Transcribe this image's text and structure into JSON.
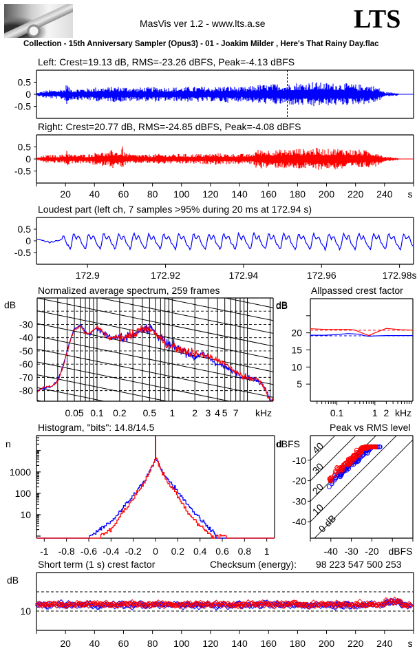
{
  "header": {
    "app_title": "MasVis ver 1.2 - www.lts.a.se",
    "brand": "LTS",
    "logo_icon": "audio-jack-photo",
    "file_caption": "Collection - 15th Anniversary Sampler (Opus3) - 01 - Joakim Milder , Here's That Rainy Day.flac"
  },
  "colors": {
    "left": "#0000ff",
    "right": "#ff0000",
    "axis": "#000000",
    "background": "#ffffff"
  },
  "chart_data": [
    {
      "id": "left-waveform",
      "type": "area",
      "title": "Left: Crest=19.13 dB, RMS=-23.26 dBFS, Peak=-4.13 dBFS",
      "channel": "left",
      "crest_db": 19.13,
      "rms_dbfs": -23.26,
      "peak_dbfs": -4.13,
      "ylim": [
        -1,
        1
      ],
      "yticks": [
        "0.5",
        "0",
        "-0.5"
      ],
      "ytick_values": [
        0.5,
        0,
        -0.5
      ],
      "xlim": [
        0,
        260
      ],
      "marker_time_s": 172.94,
      "envelope": {
        "t": [
          0,
          5,
          10,
          15,
          20,
          21,
          22,
          25,
          30,
          35,
          40,
          45,
          50,
          55,
          60,
          65,
          70,
          75,
          80,
          85,
          90,
          95,
          100,
          105,
          110,
          115,
          120,
          125,
          130,
          135,
          140,
          145,
          150,
          155,
          160,
          165,
          170,
          172,
          175,
          180,
          185,
          190,
          195,
          200,
          205,
          210,
          215,
          220,
          225,
          230,
          235,
          240,
          245,
          249,
          250,
          260
        ],
        "amp": [
          0.05,
          0.15,
          0.18,
          0.2,
          0.25,
          0.62,
          0.3,
          0.22,
          0.25,
          0.25,
          0.3,
          0.3,
          0.3,
          0.33,
          0.32,
          0.3,
          0.28,
          0.3,
          0.3,
          0.32,
          0.3,
          0.3,
          0.3,
          0.32,
          0.32,
          0.33,
          0.3,
          0.33,
          0.35,
          0.35,
          0.3,
          0.3,
          0.38,
          0.42,
          0.4,
          0.45,
          0.45,
          0.42,
          0.45,
          0.5,
          0.48,
          0.55,
          0.5,
          0.48,
          0.47,
          0.48,
          0.45,
          0.42,
          0.42,
          0.4,
          0.32,
          0.1,
          0.08,
          0.06,
          0.01,
          0.01
        ]
      }
    },
    {
      "id": "right-waveform",
      "type": "area",
      "title": "Right: Crest=20.77 dB, RMS=-24.85 dBFS, Peak=-4.08 dBFS",
      "channel": "right",
      "crest_db": 20.77,
      "rms_dbfs": -24.85,
      "peak_dbfs": -4.08,
      "ylim": [
        -1,
        1
      ],
      "yticks": [
        "0.5",
        "0",
        "-0.5"
      ],
      "ytick_values": [
        0.5,
        0,
        -0.5
      ],
      "xlim": [
        0,
        260
      ],
      "xticks": [
        "20",
        "40",
        "60",
        "80",
        "100",
        "120",
        "140",
        "160",
        "180",
        "200",
        "220",
        "240"
      ],
      "xtick_values": [
        20,
        40,
        60,
        80,
        100,
        120,
        140,
        160,
        180,
        200,
        220,
        240
      ],
      "xunit": "s",
      "envelope": {
        "t": [
          0,
          5,
          10,
          15,
          20,
          21,
          22,
          25,
          30,
          35,
          40,
          42,
          45,
          50,
          52,
          55,
          58,
          59,
          60,
          65,
          70,
          75,
          80,
          85,
          90,
          95,
          100,
          105,
          110,
          115,
          120,
          125,
          130,
          135,
          140,
          145,
          150,
          151,
          155,
          160,
          165,
          170,
          175,
          180,
          185,
          190,
          195,
          200,
          205,
          210,
          215,
          220,
          225,
          230,
          235,
          240,
          245,
          249,
          250,
          260
        ],
        "amp": [
          0.05,
          0.15,
          0.18,
          0.18,
          0.2,
          0.5,
          0.25,
          0.18,
          0.2,
          0.2,
          0.25,
          0.38,
          0.3,
          0.25,
          0.4,
          0.35,
          0.3,
          0.62,
          0.3,
          0.2,
          0.2,
          0.18,
          0.2,
          0.22,
          0.2,
          0.2,
          0.22,
          0.2,
          0.22,
          0.22,
          0.22,
          0.25,
          0.22,
          0.22,
          0.22,
          0.2,
          0.25,
          0.38,
          0.4,
          0.4,
          0.38,
          0.4,
          0.42,
          0.45,
          0.42,
          0.48,
          0.45,
          0.42,
          0.45,
          0.45,
          0.42,
          0.4,
          0.38,
          0.35,
          0.3,
          0.1,
          0.08,
          0.06,
          0.01,
          0.01
        ]
      }
    },
    {
      "id": "loudest-part",
      "type": "line",
      "title": "Loudest part (left  ch, 7 samples >95% during 20 ms at 172.94 s)",
      "ylim": [
        -1,
        1
      ],
      "yticks": [
        "0.5",
        "0",
        "-0.5"
      ],
      "ytick_values": [
        0.5,
        0,
        -0.5
      ],
      "xlim": [
        172.8869,
        172.9836
      ],
      "xticks": [
        "172.9",
        "172.92",
        "172.94",
        "172.96",
        "172.98s"
      ],
      "xtick_values": [
        172.9,
        172.92,
        172.94,
        172.96,
        172.98
      ],
      "series": [
        {
          "name": "left",
          "oscillation_hz": 260,
          "amplitude_approx": 0.45,
          "onset_s": 172.893
        }
      ]
    },
    {
      "id": "average-spectrum",
      "type": "line",
      "title": "Normalized average spectrum, 259 frames",
      "ylabel": "dB",
      "xlabel": "kHz",
      "ylim": [
        -88,
        -10
      ],
      "yticks": [
        "-30",
        "-40",
        "-50",
        "-60",
        "-70",
        "-80"
      ],
      "ytick_values": [
        -30,
        -40,
        -50,
        -60,
        -70,
        -80
      ],
      "xscale": "log",
      "xlim_khz": [
        0.016,
        22
      ],
      "xticks": [
        "0.05",
        "0.1",
        "0.2",
        "0.5",
        "1",
        "2",
        "3",
        "4",
        "5",
        "7",
        "kHz"
      ],
      "xtick_values_khz": [
        0.05,
        0.1,
        0.2,
        0.5,
        1,
        2,
        3,
        4,
        5,
        7
      ],
      "series": [
        {
          "name": "left",
          "f_khz": [
            0.016,
            0.02,
            0.025,
            0.03,
            0.035,
            0.04,
            0.045,
            0.05,
            0.055,
            0.06,
            0.07,
            0.08,
            0.09,
            0.1,
            0.12,
            0.15,
            0.2,
            0.3,
            0.4,
            0.5,
            0.6,
            0.7,
            0.8,
            1,
            1.2,
            1.5,
            2,
            2.5,
            3,
            4,
            5,
            6,
            7,
            8,
            10,
            12,
            14,
            16,
            18,
            20,
            22
          ],
          "db": [
            -80,
            -78,
            -77,
            -72,
            -62,
            -50,
            -40,
            -33,
            -32,
            -30,
            -36,
            -38,
            -34,
            -33,
            -36,
            -40,
            -40,
            -38,
            -33,
            -32,
            -36,
            -40,
            -44,
            -47,
            -48,
            -50,
            -55,
            -52,
            -55,
            -60,
            -62,
            -65,
            -66,
            -68,
            -70,
            -71,
            -73,
            -75,
            -80,
            -87,
            -88
          ]
        },
        {
          "name": "right",
          "f_khz": [
            0.016,
            0.02,
            0.025,
            0.03,
            0.035,
            0.04,
            0.045,
            0.05,
            0.055,
            0.06,
            0.07,
            0.08,
            0.09,
            0.1,
            0.12,
            0.15,
            0.2,
            0.3,
            0.4,
            0.5,
            0.6,
            0.7,
            0.8,
            1,
            1.2,
            1.5,
            2,
            2.5,
            3,
            4,
            5,
            6,
            7,
            8,
            10,
            12,
            14,
            16,
            18,
            20,
            22
          ],
          "db": [
            -81,
            -77,
            -77,
            -73,
            -63,
            -51,
            -41,
            -34,
            -33,
            -31,
            -37,
            -37,
            -34,
            -32,
            -36,
            -41,
            -39,
            -38,
            -34,
            -33,
            -37,
            -41,
            -45,
            -46,
            -48,
            -50,
            -52,
            -53,
            -54,
            -57,
            -60,
            -63,
            -66,
            -68,
            -70,
            -71,
            -72,
            -76,
            -82,
            -88,
            -88
          ]
        }
      ],
      "grid": "log-frequency vertical lines, dashed horizontal at 10 dB steps, diagonal slope lines"
    },
    {
      "id": "allpassed-crest",
      "type": "line",
      "title": "Allpassed crest factor",
      "ylabel": "dB",
      "xlabel": "kHz",
      "ylim": [
        0,
        30
      ],
      "yticks": [
        "20",
        "15",
        "10",
        "5"
      ],
      "ytick_values": [
        20,
        15,
        10,
        5
      ],
      "xscale": "log",
      "xlim_khz": [
        0.02,
        10
      ],
      "xticks": [
        "0.1",
        "1",
        "2",
        "kHz"
      ],
      "xtick_values_khz": [
        0.1,
        1,
        2
      ],
      "series": [
        {
          "name": "left",
          "f_khz": [
            0.02,
            0.05,
            0.1,
            0.2,
            0.4,
            0.5,
            0.7,
            1,
            2,
            5,
            10
          ],
          "db": [
            19.3,
            19.3,
            19.5,
            19.8,
            19.6,
            19.2,
            19.0,
            19.1,
            19.2,
            19.2,
            19.2
          ],
          "full_band_db": 19.13
        },
        {
          "name": "right",
          "f_khz": [
            0.02,
            0.05,
            0.1,
            0.2,
            0.3,
            0.5,
            0.7,
            1,
            2,
            5,
            10
          ],
          "db": [
            21.2,
            21.0,
            21.0,
            21.0,
            20.8,
            19.8,
            19.2,
            20.0,
            21.3,
            20.9,
            20.8
          ],
          "full_band_db": 20.77
        }
      ]
    },
    {
      "id": "histogram",
      "type": "line",
      "title": "Histogram, \"bits\": 14.8/14.5",
      "bits_left": 14.8,
      "bits_right": 14.5,
      "ylabel": "n",
      "yscale": "log",
      "yticks": [
        "1000",
        "100",
        "10"
      ],
      "ytick_values": [
        1000,
        100,
        10
      ],
      "ylim": [
        0.8,
        50000
      ],
      "xlim": [
        -1.07,
        1.07
      ],
      "xticks": [
        "-1",
        "-0.8",
        "-0.6",
        "-0.4",
        "-0.2",
        "0",
        "0.2",
        "0.4",
        "0.6",
        "0.8",
        "1"
      ],
      "xtick_values": [
        -1,
        -0.8,
        -0.6,
        -0.4,
        -0.2,
        0,
        0.2,
        0.4,
        0.6,
        0.8,
        1
      ],
      "series": [
        {
          "name": "left",
          "x": [
            -0.6,
            -0.5,
            -0.4,
            -0.3,
            -0.2,
            -0.1,
            -0.05,
            0,
            0.05,
            0.1,
            0.2,
            0.3,
            0.4,
            0.5,
            0.55
          ],
          "n": [
            1,
            2,
            5,
            20,
            80,
            400,
            1200,
            4000,
            1300,
            500,
            120,
            25,
            6,
            2,
            1
          ]
        },
        {
          "name": "right",
          "x": [
            -0.5,
            -0.4,
            -0.35,
            -0.3,
            -0.2,
            -0.1,
            -0.05,
            0,
            0.05,
            0.1,
            0.2,
            0.3,
            0.4,
            0.5,
            0.63
          ],
          "n": [
            1,
            2,
            5,
            12,
            60,
            330,
            1100,
            5000,
            1200,
            400,
            70,
            10,
            3,
            1,
            1
          ]
        }
      ],
      "center_spike_right": true
    },
    {
      "id": "peak-vs-rms",
      "type": "scatter",
      "title": "Peak vs RMS level",
      "ylabel": "dBFS",
      "xlabel": "dBFS",
      "xlim": [
        -50,
        0
      ],
      "ylim": [
        -48,
        2
      ],
      "xticks": [
        "-40",
        "-30",
        "-20",
        "dBFS"
      ],
      "xtick_values": [
        -40,
        -30,
        -20
      ],
      "yticks": [
        "-10",
        "-20",
        "-30",
        "-40"
      ],
      "ytick_values": [
        -10,
        -20,
        -30,
        -40
      ],
      "crest_lines_db": [
        0,
        10,
        20,
        30,
        40
      ],
      "crest_line_labels": [
        "0 dB",
        "10",
        "20",
        "30",
        "40"
      ],
      "cluster": {
        "left": {
          "rms_range": [
            -41,
            -16
          ],
          "crest_mean": 18.5,
          "crest_spread": 3
        },
        "right": {
          "rms_range": [
            -41,
            -18
          ],
          "crest_mean": 20.5,
          "crest_spread": 3
        }
      }
    },
    {
      "id": "short-term-crest",
      "type": "scatter",
      "title": "Short term (1 s) crest factor",
      "checksum_label": "Checksum (energy):",
      "checksum_value": "98 223 547 500 253",
      "ylabel": "dB",
      "ylim": [
        0,
        30
      ],
      "yticks": [
        "10"
      ],
      "ytick_values": [
        10
      ],
      "dashed_lines_db": [
        10,
        20
      ],
      "xlim": [
        0,
        260
      ],
      "xticks": [
        "20",
        "40",
        "60",
        "80",
        "100",
        "120",
        "140",
        "160",
        "180",
        "200",
        "220",
        "240",
        "s"
      ],
      "xtick_values": [
        20,
        40,
        60,
        80,
        100,
        120,
        140,
        160,
        180,
        200,
        220,
        240
      ],
      "series": [
        {
          "name": "left",
          "mean_db": 13.2,
          "spread_db": 1.6,
          "count": 259
        },
        {
          "name": "right",
          "mean_db": 13.5,
          "spread_db": 1.6,
          "count": 259
        }
      ]
    }
  ]
}
